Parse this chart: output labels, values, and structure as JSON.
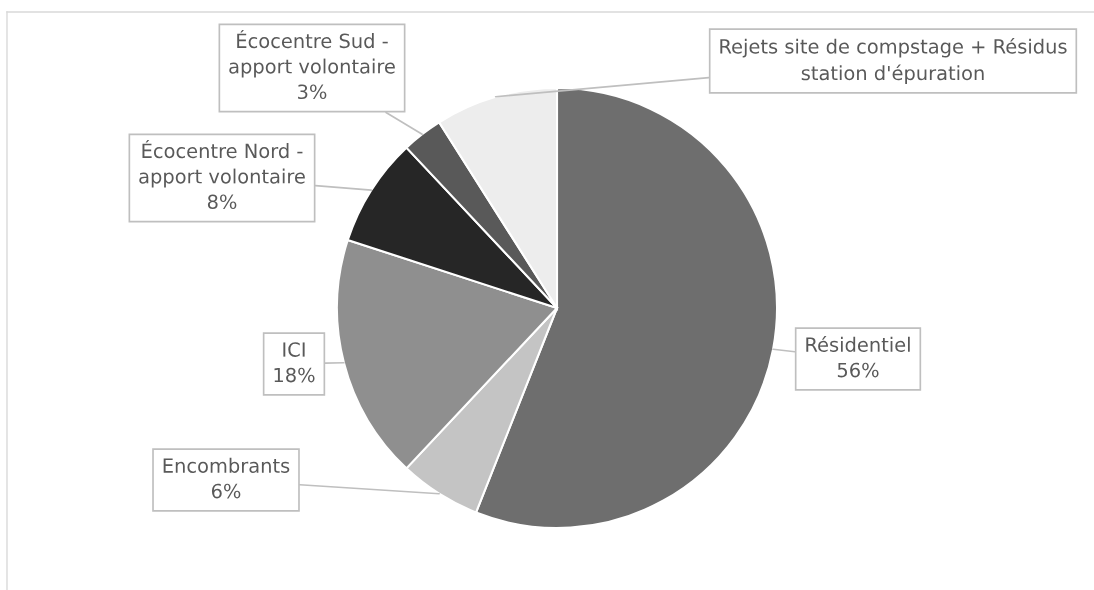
{
  "chart_data": {
    "type": "pie",
    "categories": [
      "Résidentiel",
      "Encombrants",
      "ICI",
      "Écocentre Nord -\napport volontaire",
      "Écocentre Sud -\napport volontaire",
      "Rejets site de compstage + Résidus\nstation d'épuration"
    ],
    "values": [
      56,
      6,
      18,
      8,
      3,
      9
    ],
    "value_labels": [
      "56%",
      "6%",
      "18%",
      "8%",
      "3%",
      null
    ],
    "colors": [
      "#6e6e6e",
      "#c4c4c4",
      "#8f8f8f",
      "#262626",
      "#595959",
      "#ededed"
    ]
  }
}
